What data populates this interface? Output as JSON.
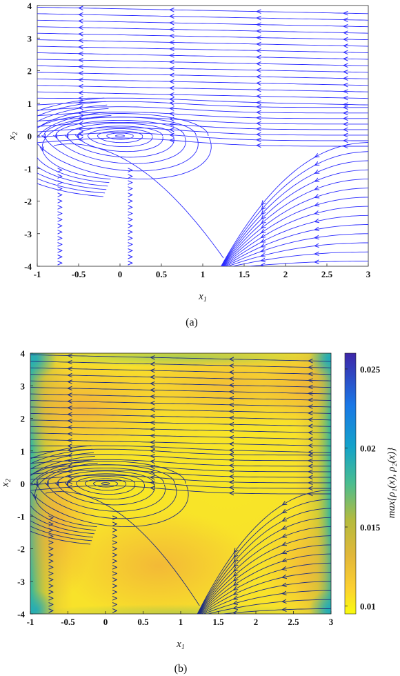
{
  "chart_data": [
    {
      "type": "streamline",
      "panel": "a",
      "caption": "(a)",
      "title": "",
      "xlabel_base": "x",
      "xlabel_sub": "1",
      "ylabel_base": "x",
      "ylabel_sub": "2",
      "xlim": [
        -1,
        3
      ],
      "ylim": [
        -4,
        4
      ],
      "x_ticks": [
        "-1",
        "-0.5",
        "0",
        "0.5",
        "1",
        "1.5",
        "2",
        "2.5",
        "3"
      ],
      "y_ticks": [
        "-4",
        "-3",
        "-2",
        "-1",
        "0",
        "1",
        "2",
        "3",
        "4"
      ],
      "stream_color": "#2b2bff",
      "background": "#ffffff",
      "features": {
        "center": [
          0,
          0
        ],
        "separatrix_end": [
          1.25,
          -4
        ]
      }
    },
    {
      "type": "heatmap",
      "panel": "b",
      "caption": "(b)",
      "title": "",
      "xlabel_base": "x",
      "xlabel_sub": "1",
      "ylabel_base": "x",
      "ylabel_sub": "2",
      "xlim": [
        -1,
        3
      ],
      "ylim": [
        -4,
        4
      ],
      "x_ticks": [
        "-1",
        "-0.5",
        "0",
        "0.5",
        "1",
        "1.5",
        "2",
        "2.5",
        "3"
      ],
      "y_ticks": [
        "-4",
        "-3",
        "-2",
        "-1",
        "0",
        "1",
        "2",
        "3",
        "4"
      ],
      "stream_color": "#1e2d80",
      "colorbar": {
        "label": "max{ρ₁(x), ρ₂(x)}",
        "range": [
          0.0095,
          0.026
        ],
        "ticks": [
          "0.01",
          "0.015",
          "0.02",
          "0.025"
        ],
        "tick_values": [
          0.01,
          0.015,
          0.02,
          0.025
        ],
        "colormap": "parula-reversed",
        "colors": [
          "#f9fb0e",
          "#fcce2e",
          "#f2b53a",
          "#b8bc3e",
          "#33b7a0",
          "#0e8fd9",
          "#3c4ae6",
          "#3e26a8"
        ]
      },
      "features": {
        "center": [
          0,
          0
        ],
        "separatrix_end": [
          1.25,
          -4
        ]
      }
    }
  ]
}
